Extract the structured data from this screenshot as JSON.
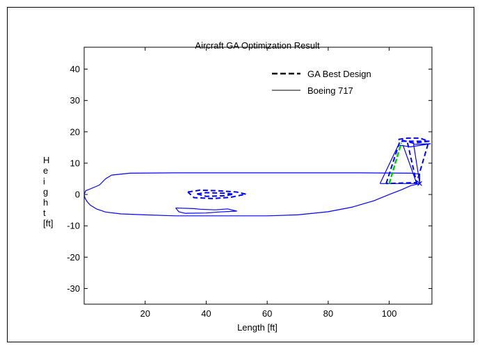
{
  "chart_data": {
    "type": "line",
    "title": "Aircraft GA Optimization Result",
    "xlabel": "Length [ft]",
    "ylabel": "Height [ft]",
    "ylabel_chars": [
      "H",
      "e",
      "i",
      "g",
      "h",
      "t",
      "[ft]"
    ],
    "xlim": [
      0,
      114
    ],
    "ylim": [
      -35,
      47
    ],
    "xticks": [
      20,
      40,
      60,
      80,
      100
    ],
    "yticks": [
      40,
      30,
      20,
      10,
      0,
      -10,
      -20,
      -30
    ],
    "grid": false,
    "legend": {
      "placement": "top-right",
      "entries": [
        {
          "label": "GA Best Design",
          "style": "dashed"
        },
        {
          "label": "Boeing 717",
          "style": "solid"
        }
      ]
    },
    "colors": {
      "series": "#0000ff",
      "highlight": "#00cc00",
      "axes": "#000000"
    },
    "series": [
      {
        "style": "solid",
        "part": "fuselage",
        "points": [
          [
            0,
            0
          ],
          [
            0.3,
            -1.2
          ],
          [
            1,
            -2.3
          ],
          [
            2,
            -3.4
          ],
          [
            4,
            -4.6
          ],
          [
            7,
            -5.6
          ],
          [
            12,
            -6.2
          ],
          [
            20,
            -6.5
          ],
          [
            30,
            -6.8
          ],
          [
            45,
            -6.8
          ],
          [
            60,
            -6.8
          ],
          [
            70,
            -6.5
          ],
          [
            80,
            -5.5
          ],
          [
            88,
            -4
          ],
          [
            95,
            -2
          ],
          [
            100,
            0
          ],
          [
            104,
            1.5
          ],
          [
            107,
            2.8
          ],
          [
            110,
            3.5
          ],
          [
            110,
            6.5
          ],
          [
            107,
            6.8
          ],
          [
            90,
            6.9
          ],
          [
            70,
            6.9
          ],
          [
            50,
            6.9
          ],
          [
            30,
            6.9
          ],
          [
            15,
            6.8
          ],
          [
            9,
            6.2
          ],
          [
            7,
            5
          ],
          [
            5,
            3
          ],
          [
            2,
            1.8
          ],
          [
            0.5,
            1.2
          ],
          [
            0,
            0
          ]
        ]
      },
      {
        "style": "solid",
        "part": "wing",
        "points": [
          [
            30,
            -4.3
          ],
          [
            36,
            -4.5
          ],
          [
            38,
            -4.7
          ],
          [
            43,
            -4.9
          ],
          [
            47,
            -4.6
          ],
          [
            50,
            -5.3
          ],
          [
            44,
            -5.6
          ],
          [
            40,
            -5.9
          ],
          [
            33,
            -6
          ],
          [
            31,
            -5.5
          ],
          [
            30,
            -4.3
          ]
        ]
      },
      {
        "style": "dashed",
        "part": "wing",
        "points": [
          [
            34,
            0.8
          ],
          [
            38,
            1.4
          ],
          [
            44,
            1.2
          ],
          [
            50,
            0.8
          ],
          [
            53,
            0.1
          ],
          [
            48,
            -0.9
          ],
          [
            42,
            -1.3
          ],
          [
            36,
            -1
          ],
          [
            34,
            0.8
          ]
        ]
      },
      {
        "style": "dashed",
        "part": "wing-inner",
        "points": [
          [
            37,
            0.2
          ],
          [
            40,
            0.6
          ],
          [
            46,
            0.4
          ],
          [
            49,
            0.1
          ],
          [
            46,
            -0.4
          ],
          [
            40,
            -0.6
          ],
          [
            37,
            0.2
          ]
        ]
      },
      {
        "style": "solid",
        "part": "tail",
        "points": [
          [
            97,
            3.5
          ],
          [
            110,
            3.5
          ],
          [
            108,
            16
          ],
          [
            113.5,
            16.2
          ],
          [
            107,
            15.2
          ],
          [
            103,
            15.8
          ],
          [
            97,
            3.5
          ]
        ]
      },
      {
        "style": "solid",
        "part": "tail-spar",
        "points": [
          [
            104.5,
            15.8
          ],
          [
            109,
            3.5
          ]
        ]
      },
      {
        "style": "dashed",
        "part": "tail",
        "points": [
          [
            99,
            3.5
          ],
          [
            103.5,
            17
          ],
          [
            108,
            17
          ],
          [
            113,
            17
          ],
          [
            109,
            3.8
          ],
          [
            99,
            3.5
          ]
        ]
      },
      {
        "style": "dashed",
        "part": "tail-top",
        "points": [
          [
            103,
            17.6
          ],
          [
            106,
            18
          ],
          [
            110,
            18
          ],
          [
            113,
            17
          ],
          [
            108,
            16.4
          ],
          [
            103,
            17.6
          ]
        ]
      },
      {
        "style": "dashed",
        "part": "tail-spar",
        "points": [
          [
            106,
            16.5
          ],
          [
            109,
            3.5
          ]
        ]
      },
      {
        "style": "highlight",
        "part": "tail-spar",
        "points": [
          [
            100,
            3.5
          ],
          [
            104,
            16.5
          ]
        ]
      }
    ]
  }
}
